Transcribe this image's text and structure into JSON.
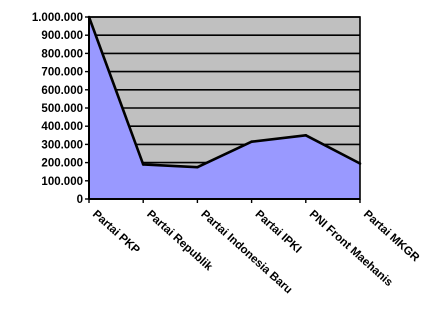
{
  "chart_data": {
    "type": "area",
    "categories": [
      "Partai PKP",
      "Partai Republik",
      "Partai Indonesia Baru",
      "Partai IPKI",
      "PNI Front Maehanis",
      "Partai MKGR"
    ],
    "series": [
      {
        "values": [
          1000000,
          190000,
          175000,
          315000,
          350000,
          195000
        ]
      }
    ],
    "ylim": [
      0,
      1000000
    ],
    "yticks": [
      0,
      100000,
      200000,
      300000,
      400000,
      500000,
      600000,
      700000,
      800000,
      900000,
      1000000
    ],
    "ytick_labels": [
      "0",
      "100.000",
      "200.000",
      "300.000",
      "400.000",
      "500.000",
      "600.000",
      "700.000",
      "800.000",
      "900.000",
      "1.000.000"
    ],
    "grid": true,
    "legend": "none",
    "title": "",
    "xlabel": "",
    "ylabel": "",
    "colors": {
      "plot_background": "#c0c0c0",
      "area_fill": "#9999ff",
      "line": "#000000",
      "gridline": "#000000"
    }
  }
}
